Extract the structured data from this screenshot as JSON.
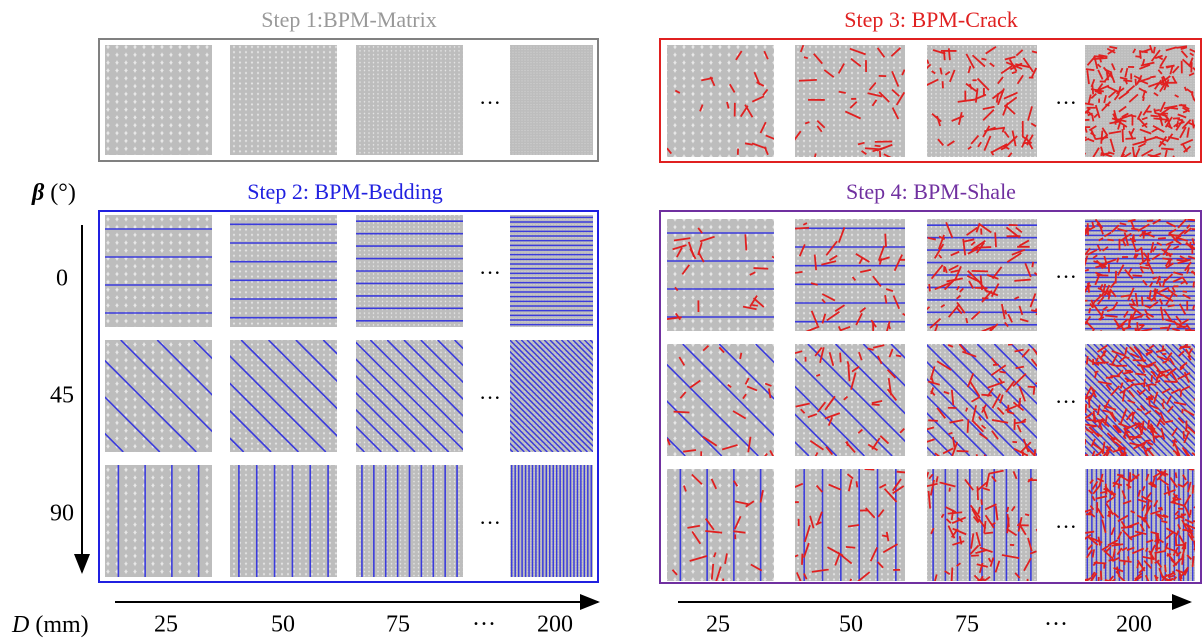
{
  "panels": [
    {
      "title": "Step 1:BPM-Matrix"
    },
    {
      "title": "Step 2: BPM-Bedding"
    },
    {
      "title": "Step 3: BPM-Crack"
    },
    {
      "title": "Step 4: BPM-Shale"
    }
  ],
  "ellipsis": "···",
  "beta_axis": {
    "symbol": "β",
    "unit": "(°)",
    "labels": [
      "0",
      "45",
      "90"
    ]
  },
  "d_axis": {
    "symbol": "D",
    "unit": "(mm)",
    "labels": [
      "25",
      "50",
      "75",
      "···",
      "200"
    ]
  }
}
